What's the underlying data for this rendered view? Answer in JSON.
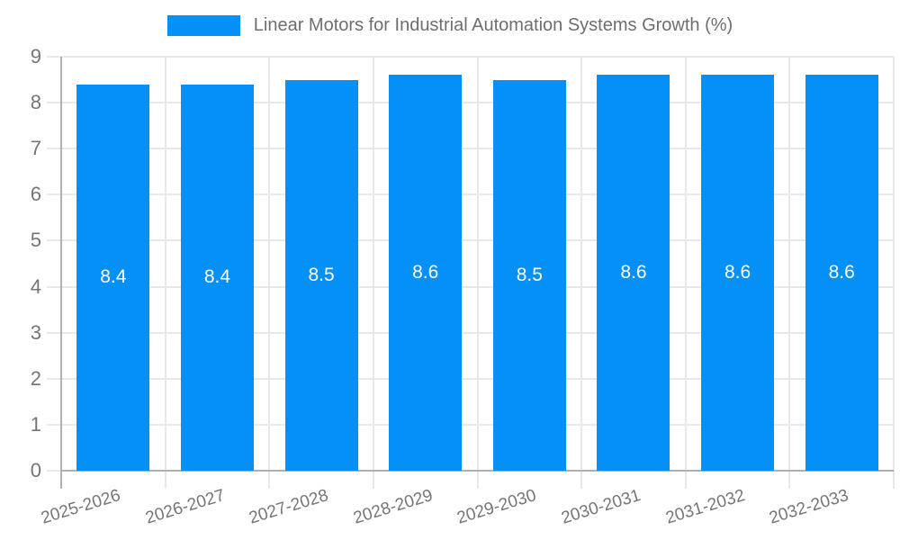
{
  "legend": {
    "label": "Linear Motors for Industrial Automation Systems Growth (%)"
  },
  "chart_data": {
    "type": "bar",
    "title": "Linear Motors for Industrial Automation Systems Growth (%)",
    "categories": [
      "2025-2026",
      "2026-2027",
      "2027-2028",
      "2028-2029",
      "2029-2030",
      "2030-2031",
      "2031-2032",
      "2032-2033"
    ],
    "values": [
      8.4,
      8.4,
      8.5,
      8.6,
      8.5,
      8.6,
      8.6,
      8.6
    ],
    "value_labels": [
      "8.4",
      "8.4",
      "8.5",
      "8.6",
      "8.5",
      "8.6",
      "8.6",
      "8.6"
    ],
    "xlabel": "",
    "ylabel": "",
    "ylim": [
      0,
      9
    ],
    "yticks": [
      0,
      1,
      2,
      3,
      4,
      5,
      6,
      7,
      8,
      9
    ],
    "grid": true,
    "legend_position": "top-center",
    "colors": {
      "bar": "#0590F8",
      "axis": "#B0B0B0",
      "gridline": "#E8E8E8",
      "tick_label": "#757575",
      "legend_text": "#6E6E6E",
      "value_label": "#FFFFFF",
      "background": "#FFFFFF"
    }
  }
}
